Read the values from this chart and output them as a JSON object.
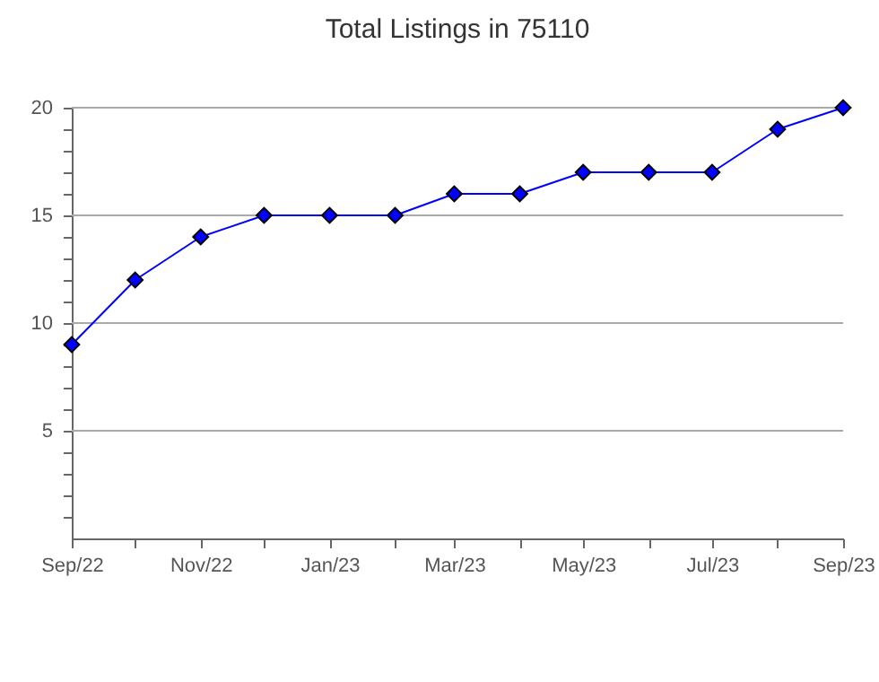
{
  "chart_data": {
    "type": "line",
    "title": "Total Listings in 75110",
    "x": [
      "2022-09",
      "2022-10",
      "2022-11",
      "2022-12",
      "2023-01",
      "2023-02",
      "2023-03",
      "2023-04",
      "2023-05",
      "2023-06",
      "2023-07",
      "2023-08",
      "2023-09"
    ],
    "xlim": [
      "2022-09",
      "2023-09"
    ],
    "xticks": [
      {
        "value": "2022-09",
        "label": "Sep/22"
      },
      {
        "value": "2022-10",
        "label": null
      },
      {
        "value": "2022-11",
        "label": "Nov/22"
      },
      {
        "value": "2022-12",
        "label": null
      },
      {
        "value": "2023-01",
        "label": "Jan/23"
      },
      {
        "value": "2023-02",
        "label": null
      },
      {
        "value": "2023-03",
        "label": "Mar/23"
      },
      {
        "value": "2023-04",
        "label": null
      },
      {
        "value": "2023-05",
        "label": "May/23"
      },
      {
        "value": "2023-06",
        "label": null
      },
      {
        "value": "2023-07",
        "label": "Jul/23"
      },
      {
        "value": "2023-08",
        "label": null
      },
      {
        "value": "2023-09",
        "label": "Sep/23"
      }
    ],
    "series": [
      {
        "color": "#0000ff",
        "values": [
          9,
          12,
          14,
          15,
          15,
          15,
          16,
          16,
          17,
          17,
          17,
          19,
          20
        ]
      }
    ],
    "ylim": [
      0,
      20
    ],
    "yticks": [
      {
        "value": 1,
        "label": null
      },
      {
        "value": 2,
        "label": null
      },
      {
        "value": 3,
        "label": null
      },
      {
        "value": 4,
        "label": null
      },
      5,
      {
        "value": 6,
        "label": null
      },
      {
        "value": 7,
        "label": null
      },
      {
        "value": 8,
        "label": null
      },
      {
        "value": 9,
        "label": null
      },
      10,
      {
        "value": 11,
        "label": null
      },
      {
        "value": 12,
        "label": null
      },
      {
        "value": 13,
        "label": null
      },
      {
        "value": 14,
        "label": null
      },
      15,
      {
        "value": 16,
        "label": null
      },
      {
        "value": 17,
        "label": null
      },
      {
        "value": 18,
        "label": null
      },
      {
        "value": 19,
        "label": null
      },
      20
    ],
    "grid": "y",
    "marker": "diamond",
    "line_style": "solid",
    "legend": false
  }
}
